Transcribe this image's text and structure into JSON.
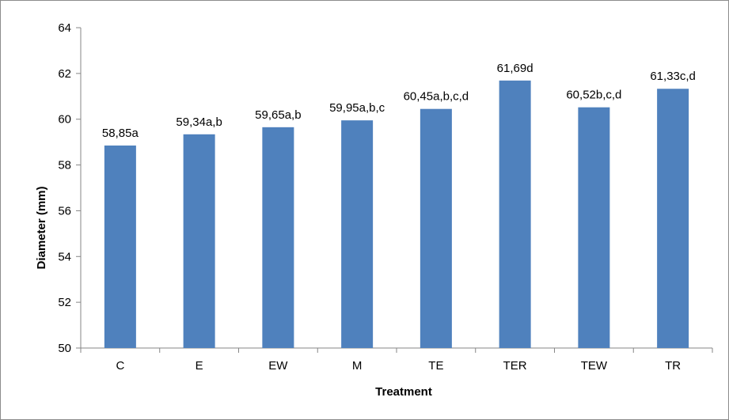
{
  "chart_data": {
    "type": "bar",
    "title": "",
    "xlabel": "Treatment",
    "ylabel": "Diameter (mm)",
    "categories": [
      "C",
      "E",
      "EW",
      "M",
      "TE",
      "TER",
      "TEW",
      "TR"
    ],
    "values": [
      58.85,
      59.34,
      59.65,
      59.95,
      60.45,
      61.69,
      60.52,
      61.33
    ],
    "data_labels": [
      "58,85a",
      "59,34a,b",
      "59,65a,b",
      "59,95a,b,c",
      "60,45a,b,c,d",
      "61,69d",
      "60,52b,c,d",
      "61,33c,d"
    ],
    "ylim": [
      50,
      64
    ],
    "yticks": [
      50,
      52,
      54,
      56,
      58,
      60,
      62,
      64
    ],
    "ytick_labels": [
      "50",
      "52",
      "54",
      "56",
      "58",
      "60",
      "62",
      "64"
    ],
    "grid": false,
    "legend": "none",
    "bar_color": "#4f81bd"
  }
}
